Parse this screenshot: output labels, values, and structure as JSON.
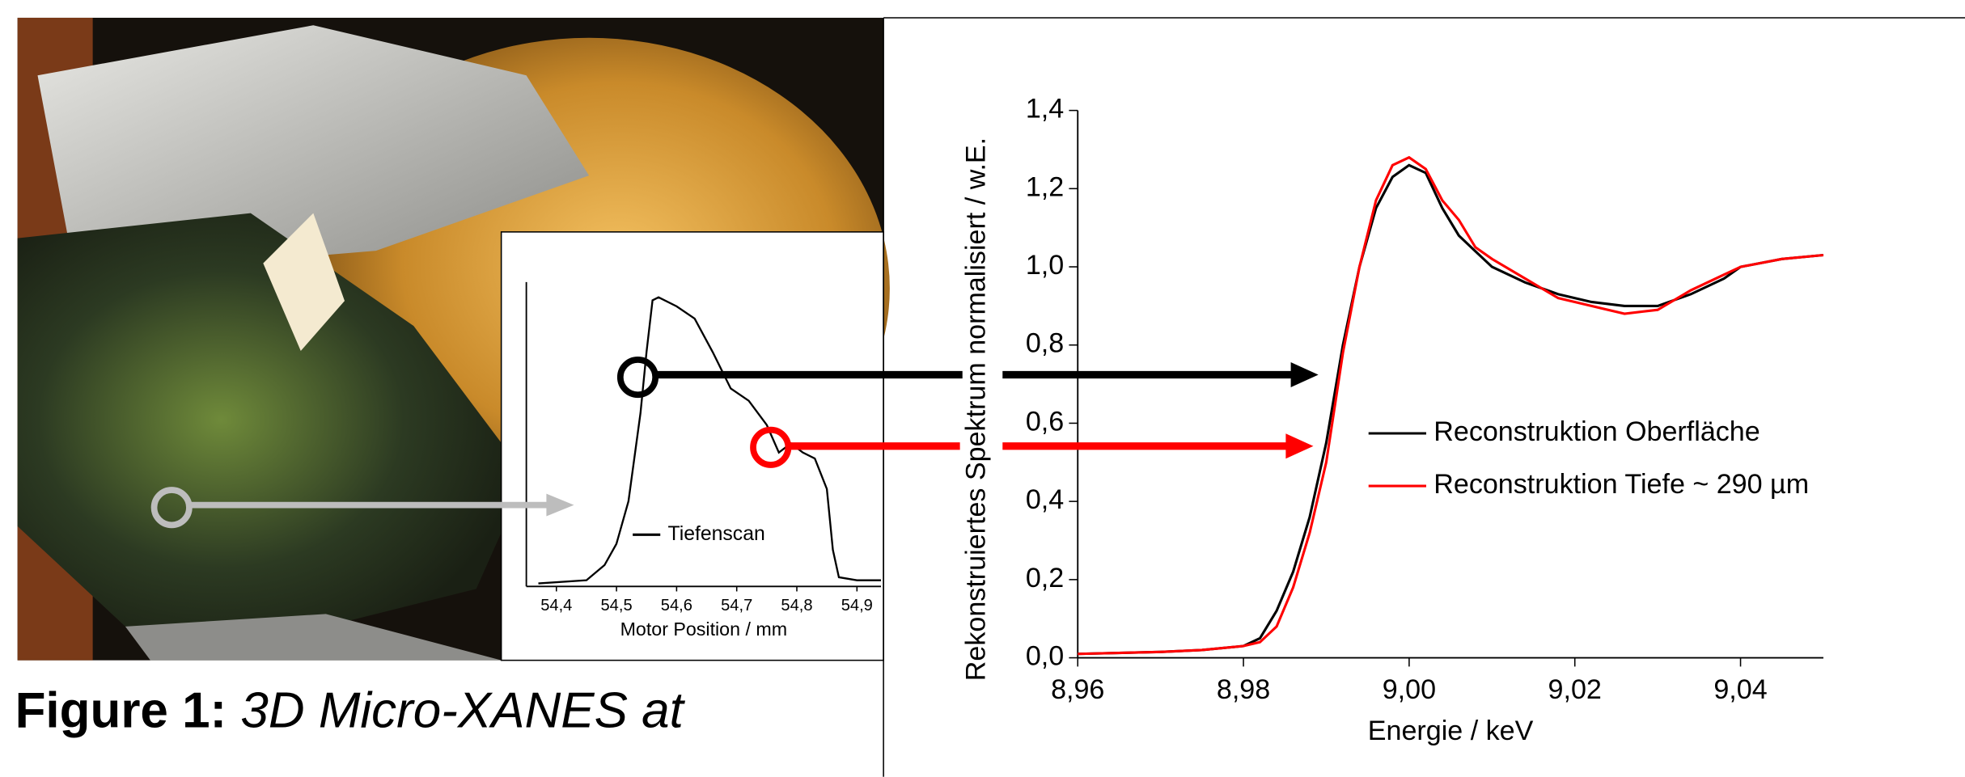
{
  "figure": {
    "label": "Figure 1:",
    "caption": "3D Micro-XANES at"
  },
  "chart_data": [
    {
      "type": "line",
      "xlabel": "Motor Position / mm",
      "x": [
        54.37,
        54.45,
        54.48,
        54.5,
        54.52,
        54.54,
        54.55,
        54.56,
        54.57,
        54.6,
        54.63,
        54.66,
        54.69,
        54.72,
        54.75,
        54.77,
        54.79,
        54.81,
        54.83,
        54.85,
        54.86,
        54.87,
        54.9,
        54.94
      ],
      "series": [
        {
          "name": "Tiefenscan",
          "color": "#000000",
          "values": [
            0.01,
            0.02,
            0.07,
            0.14,
            0.28,
            0.57,
            0.77,
            0.94,
            0.95,
            0.92,
            0.88,
            0.77,
            0.65,
            0.61,
            0.53,
            0.44,
            0.47,
            0.44,
            0.42,
            0.32,
            0.12,
            0.03,
            0.02,
            0.02
          ]
        }
      ],
      "xlim": [
        54.35,
        54.94
      ],
      "ylim": [
        0,
        1
      ],
      "xticks": [
        {
          "value": 54.4,
          "label": "54,4"
        },
        {
          "value": 54.5,
          "label": "54,5"
        },
        {
          "value": 54.6,
          "label": "54,6"
        },
        {
          "value": 54.7,
          "label": "54,7"
        },
        {
          "value": 54.8,
          "label": "54,8"
        },
        {
          "value": 54.9,
          "label": "54,9"
        }
      ],
      "legend": "bottom"
    },
    {
      "type": "line",
      "xlabel": "Energie / keV",
      "ylabel": "Rekonstruiertes Spektrum normalisiert / w.E.",
      "x": [
        8.96,
        8.97,
        8.975,
        8.98,
        8.982,
        8.984,
        8.986,
        8.988,
        8.99,
        8.992,
        8.994,
        8.996,
        8.998,
        9.0,
        9.002,
        9.004,
        9.006,
        9.008,
        9.01,
        9.014,
        9.018,
        9.022,
        9.026,
        9.03,
        9.034,
        9.038,
        9.04,
        9.045,
        9.05
      ],
      "series": [
        {
          "name": "Reconstruktion Oberfläche",
          "color": "#000000",
          "values": [
            0.01,
            0.015,
            0.02,
            0.03,
            0.05,
            0.12,
            0.22,
            0.36,
            0.55,
            0.8,
            1.0,
            1.15,
            1.23,
            1.26,
            1.24,
            1.15,
            1.08,
            1.04,
            1.0,
            0.96,
            0.93,
            0.91,
            0.9,
            0.9,
            0.93,
            0.97,
            1.0,
            1.02,
            1.03
          ]
        },
        {
          "name": "Reconstruktion Tiefe ~ 290 µm",
          "color": "#ff0000",
          "values": [
            0.01,
            0.015,
            0.02,
            0.03,
            0.04,
            0.08,
            0.18,
            0.32,
            0.5,
            0.78,
            1.0,
            1.17,
            1.26,
            1.28,
            1.25,
            1.17,
            1.12,
            1.05,
            1.02,
            0.97,
            0.92,
            0.9,
            0.88,
            0.89,
            0.94,
            0.98,
            1.0,
            1.02,
            1.03
          ]
        }
      ],
      "xlim": [
        8.96,
        9.05
      ],
      "ylim": [
        0,
        1.4
      ],
      "xticks": [
        {
          "value": 8.96,
          "label": "8,96"
        },
        {
          "value": 8.98,
          "label": "8,98"
        },
        {
          "value": 9.0,
          "label": "9,00"
        },
        {
          "value": 9.02,
          "label": "9,02"
        },
        {
          "value": 9.04,
          "label": "9,04"
        }
      ],
      "yticks": [
        {
          "value": 0,
          "label": "0,0"
        },
        {
          "value": 0.2,
          "label": "0,2"
        },
        {
          "value": 0.4,
          "label": "0,4"
        },
        {
          "value": 0.6,
          "label": "0,6"
        },
        {
          "value": 0.8,
          "label": "0,8"
        },
        {
          "value": 1.0,
          "label": "1,0"
        },
        {
          "value": 1.2,
          "label": "1,2"
        },
        {
          "value": 1.4,
          "label": "1,4"
        }
      ],
      "legend": "right"
    }
  ]
}
